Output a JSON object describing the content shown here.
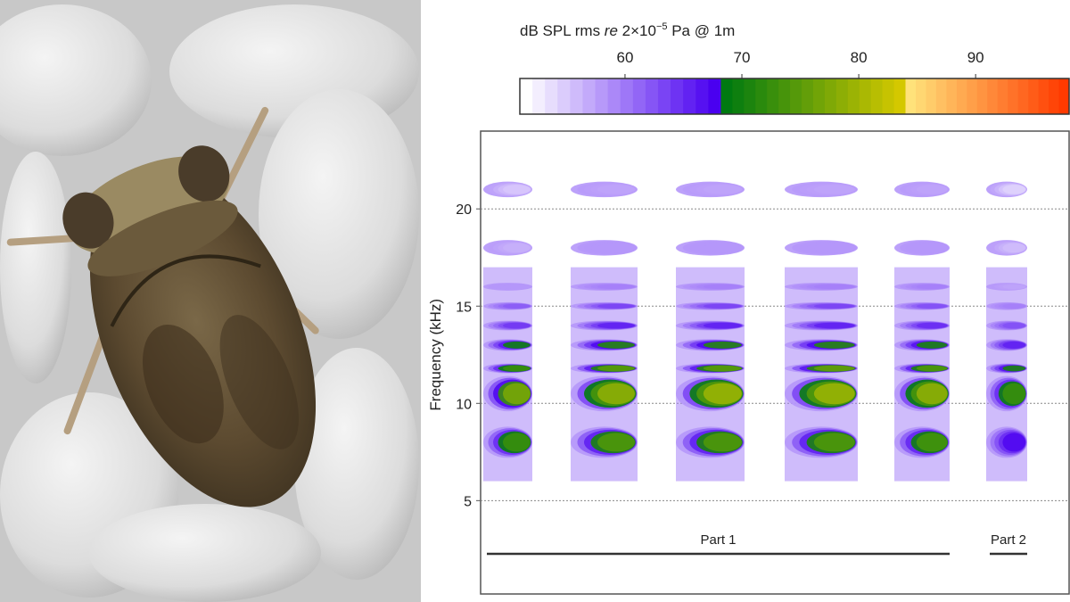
{
  "photo": {
    "subject": "water bug"
  },
  "chart_data": {
    "type": "heatmap",
    "subtype": "spectrogram",
    "colorbar": {
      "title_parts": [
        "dB SPL rms ",
        "re",
        "  2×10",
        "−5",
        " Pa @ 1m"
      ],
      "ticks": [
        60,
        70,
        80,
        90
      ],
      "range": [
        51,
        98
      ],
      "segments": [
        {
          "from": 51,
          "to": 68.2,
          "colors": [
            "#ffffff",
            "#4a00f0"
          ]
        },
        {
          "from": 68.2,
          "to": 84.0,
          "colors": [
            "#007a10",
            "#d4c800"
          ]
        },
        {
          "from": 84.0,
          "to": 98,
          "colors": [
            "#ffe27a",
            "#ff3a00"
          ]
        }
      ]
    },
    "ylabel": "Frequency (kHz)",
    "yticks": [
      5,
      10,
      15,
      20
    ],
    "ylim": [
      0.2,
      24
    ],
    "grid": "horizontal dotted",
    "bursts": [
      {
        "index": 1,
        "part": "Part 1",
        "peak_db": [
          {
            "khz": 8,
            "db": 76
          },
          {
            "khz": 10.5,
            "db": 82
          },
          {
            "khz": 11.8,
            "db": 76
          },
          {
            "khz": 13,
            "db": 72
          },
          {
            "khz": 14,
            "db": 66
          },
          {
            "khz": 15,
            "db": 63
          },
          {
            "khz": 16,
            "db": 58
          },
          {
            "khz": 18,
            "db": 56
          },
          {
            "khz": 21,
            "db": 54
          }
        ]
      },
      {
        "index": 2,
        "part": "Part 1",
        "peak_db": [
          {
            "khz": 8,
            "db": 78
          },
          {
            "khz": 10.5,
            "db": 84
          },
          {
            "khz": 11.8,
            "db": 79
          },
          {
            "khz": 13,
            "db": 74
          },
          {
            "khz": 14,
            "db": 68
          },
          {
            "khz": 15,
            "db": 65
          },
          {
            "khz": 16,
            "db": 60
          },
          {
            "khz": 18,
            "db": 58
          },
          {
            "khz": 21,
            "db": 57
          }
        ]
      },
      {
        "index": 3,
        "part": "Part 1",
        "peak_db": [
          {
            "khz": 8,
            "db": 78
          },
          {
            "khz": 10.5,
            "db": 85
          },
          {
            "khz": 11.8,
            "db": 79
          },
          {
            "khz": 13,
            "db": 74
          },
          {
            "khz": 14,
            "db": 68
          },
          {
            "khz": 15,
            "db": 65
          },
          {
            "khz": 16,
            "db": 60
          },
          {
            "khz": 18,
            "db": 58
          },
          {
            "khz": 21,
            "db": 57
          }
        ]
      },
      {
        "index": 4,
        "part": "Part 1",
        "peak_db": [
          {
            "khz": 8,
            "db": 78
          },
          {
            "khz": 10.5,
            "db": 85
          },
          {
            "khz": 11.8,
            "db": 80
          },
          {
            "khz": 13,
            "db": 74
          },
          {
            "khz": 14,
            "db": 68
          },
          {
            "khz": 15,
            "db": 65
          },
          {
            "khz": 16,
            "db": 60
          },
          {
            "khz": 18,
            "db": 58
          },
          {
            "khz": 21,
            "db": 57
          }
        ]
      },
      {
        "index": 5,
        "part": "Part 1",
        "peak_db": [
          {
            "khz": 8,
            "db": 77
          },
          {
            "khz": 10.5,
            "db": 84
          },
          {
            "khz": 11.8,
            "db": 78
          },
          {
            "khz": 13,
            "db": 73
          },
          {
            "khz": 14,
            "db": 67
          },
          {
            "khz": 15,
            "db": 64
          },
          {
            "khz": 16,
            "db": 60
          },
          {
            "khz": 18,
            "db": 58
          },
          {
            "khz": 21,
            "db": 57
          }
        ]
      },
      {
        "index": 6,
        "part": "Part 2",
        "peak_db": [
          {
            "khz": 8,
            "db": 70
          },
          {
            "khz": 10.5,
            "db": 76
          },
          {
            "khz": 11.8,
            "db": 73
          },
          {
            "khz": 13,
            "db": 68
          },
          {
            "khz": 14,
            "db": 64
          },
          {
            "khz": 15,
            "db": 60
          },
          {
            "khz": 16,
            "db": 57
          },
          {
            "khz": 18,
            "db": 55
          },
          {
            "khz": 21,
            "db": 53
          }
        ]
      }
    ],
    "annotations": [
      {
        "label": "Part 1",
        "bursts": [
          1,
          5
        ]
      },
      {
        "label": "Part 2",
        "bursts": [
          6,
          6
        ]
      }
    ]
  }
}
